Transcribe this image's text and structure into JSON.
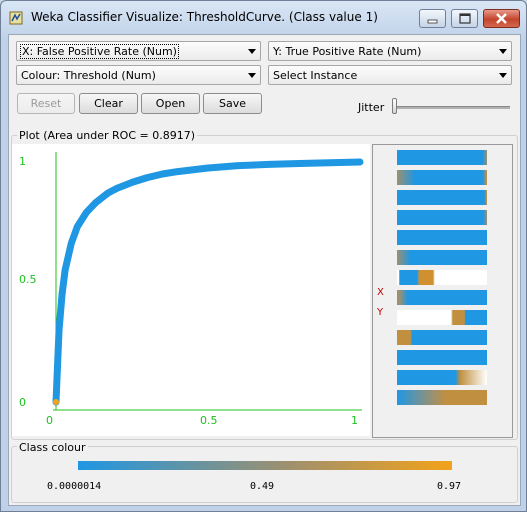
{
  "window": {
    "title": "Weka Classifier Visualize: ThresholdCurve. (Class value 1)",
    "minimize_label": "minimize",
    "maximize_label": "maximize",
    "close_label": "close"
  },
  "controls": {
    "x_axis": "X: False Positive Rate (Num)",
    "y_axis": "Y: True Positive Rate (Num)",
    "colour": "Colour: Threshold (Num)",
    "instance": "Select Instance"
  },
  "buttons": {
    "reset": "Reset",
    "clear": "Clear",
    "open": "Open",
    "save": "Save"
  },
  "jitter": {
    "label": "Jitter",
    "value": 0
  },
  "plot": {
    "title": "Plot (Area under ROC = 0.8917)",
    "y_ticks": [
      "1",
      "0.5",
      "0"
    ],
    "x_ticks": [
      "0",
      "0.5",
      "1"
    ],
    "x_marker": "X",
    "y_marker": "Y"
  },
  "chart_data": {
    "type": "scatter",
    "xlabel": "False Positive Rate",
    "ylabel": "True Positive Rate",
    "xlim": [
      0,
      1
    ],
    "ylim": [
      0,
      1
    ],
    "series": [
      {
        "name": "ROC",
        "x": [
          0,
          0.005,
          0.01,
          0.02,
          0.03,
          0.05,
          0.07,
          0.1,
          0.13,
          0.17,
          0.2,
          0.25,
          0.3,
          0.35,
          0.4,
          0.5,
          0.6,
          0.7,
          0.8,
          0.9,
          1.0
        ],
        "y": [
          0,
          0.15,
          0.3,
          0.45,
          0.55,
          0.66,
          0.73,
          0.79,
          0.83,
          0.87,
          0.89,
          0.915,
          0.935,
          0.95,
          0.96,
          0.975,
          0.985,
          0.99,
          0.994,
          0.997,
          1.0
        ]
      }
    ],
    "colors": {
      "low": "#1f97e3",
      "high": "#f3a21a",
      "axis": "#20c020"
    }
  },
  "class_colour": {
    "title": "Class colour",
    "min": "0.0000014",
    "mid": "0.49",
    "max": "0.97"
  }
}
